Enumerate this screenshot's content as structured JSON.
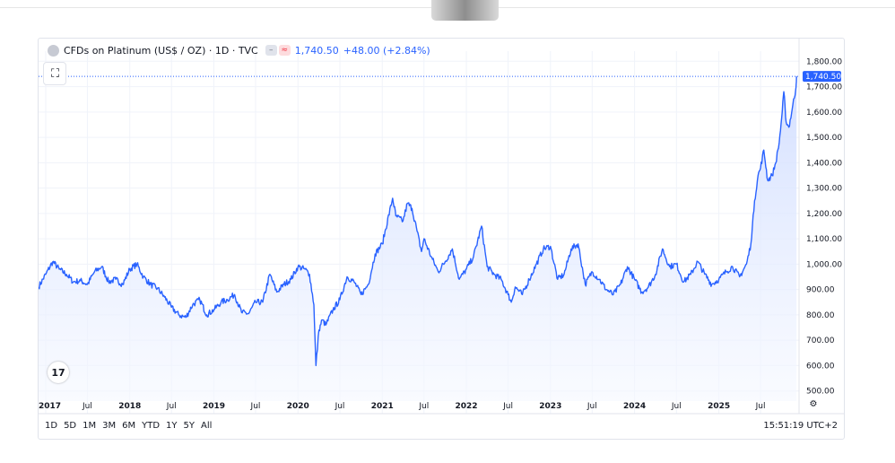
{
  "legend": {
    "title": "CFDs on Platinum (US$ / OZ) · 1D · TVC",
    "symbol_icon": "platinum-symbol-icon",
    "price": "1,740.50",
    "change": "+48.00 (+2.84%)",
    "price_color": "#2962ff"
  },
  "fullscreen_icon": "expand-icon",
  "range_buttons": [
    "1D",
    "5D",
    "1M",
    "3M",
    "6M",
    "YTD",
    "1Y",
    "5Y",
    "All"
  ],
  "clock": "15:51:19 UTC+2",
  "tv_logo": "17",
  "last_price_label": "1,740.50",
  "colors": {
    "line": "#2962ff",
    "area_top": "#cfdcff",
    "area_bottom": "#f5f8ff",
    "grid": "#f0f3fa"
  },
  "chart_data": {
    "type": "area",
    "title": "CFDs on Platinum (US$ / OZ) · 1D · TVC",
    "ylim": [
      460,
      1840
    ],
    "y_ticks": [
      "1,800.00",
      "1,700.00",
      "1,600.00",
      "1,500.00",
      "1,400.00",
      "1,300.00",
      "1,200.00",
      "1,100.00",
      "1,000.00",
      "900.00",
      "800.00",
      "700.00",
      "600.00",
      "500.00"
    ],
    "x_ticks": [
      "2017",
      "Jul",
      "2018",
      "Jul",
      "2019",
      "Jul",
      "2020",
      "Jul",
      "2021",
      "Jul",
      "2022",
      "Jul",
      "2023",
      "Jul",
      "2024",
      "Jul",
      "2025",
      "Jul"
    ],
    "xlim": [
      "2016-12-01",
      "2025-12-15"
    ],
    "grid": true,
    "series": [
      {
        "values": [
          [
            "2016-12-01",
            910
          ],
          [
            "2017-01-01",
            960
          ],
          [
            "2017-02-01",
            1010
          ],
          [
            "2017-03-01",
            980
          ],
          [
            "2017-04-01",
            960
          ],
          [
            "2017-05-01",
            930
          ],
          [
            "2017-06-01",
            935
          ],
          [
            "2017-07-01",
            920
          ],
          [
            "2017-08-01",
            970
          ],
          [
            "2017-09-01",
            990
          ],
          [
            "2017-10-01",
            930
          ],
          [
            "2017-11-01",
            940
          ],
          [
            "2017-12-01",
            920
          ],
          [
            "2018-01-01",
            980
          ],
          [
            "2018-02-01",
            1000
          ],
          [
            "2018-03-01",
            950
          ],
          [
            "2018-04-01",
            920
          ],
          [
            "2018-05-01",
            905
          ],
          [
            "2018-06-01",
            870
          ],
          [
            "2018-07-01",
            830
          ],
          [
            "2018-08-01",
            800
          ],
          [
            "2018-09-01",
            790
          ],
          [
            "2018-10-01",
            840
          ],
          [
            "2018-11-01",
            860
          ],
          [
            "2018-12-01",
            800
          ],
          [
            "2019-01-01",
            820
          ],
          [
            "2019-02-01",
            850
          ],
          [
            "2019-03-01",
            860
          ],
          [
            "2019-04-01",
            880
          ],
          [
            "2019-05-01",
            810
          ],
          [
            "2019-06-01",
            805
          ],
          [
            "2019-07-01",
            850
          ],
          [
            "2019-08-01",
            850
          ],
          [
            "2019-09-01",
            960
          ],
          [
            "2019-10-01",
            890
          ],
          [
            "2019-11-01",
            920
          ],
          [
            "2019-12-01",
            940
          ],
          [
            "2020-01-01",
            990
          ],
          [
            "2020-02-01",
            980
          ],
          [
            "2020-02-20",
            960
          ],
          [
            "2020-03-10",
            840
          ],
          [
            "2020-03-19",
            600
          ],
          [
            "2020-04-01",
            740
          ],
          [
            "2020-04-15",
            780
          ],
          [
            "2020-05-01",
            760
          ],
          [
            "2020-06-01",
            820
          ],
          [
            "2020-07-01",
            860
          ],
          [
            "2020-08-01",
            950
          ],
          [
            "2020-09-01",
            930
          ],
          [
            "2020-10-01",
            880
          ],
          [
            "2020-11-01",
            920
          ],
          [
            "2020-12-01",
            1040
          ],
          [
            "2021-01-01",
            1080
          ],
          [
            "2021-02-15",
            1260
          ],
          [
            "2021-03-01",
            1190
          ],
          [
            "2021-04-01",
            1170
          ],
          [
            "2021-04-20",
            1240
          ],
          [
            "2021-05-10",
            1220
          ],
          [
            "2021-06-01",
            1130
          ],
          [
            "2021-06-20",
            1050
          ],
          [
            "2021-07-01",
            1100
          ],
          [
            "2021-08-01",
            1030
          ],
          [
            "2021-09-01",
            970
          ],
          [
            "2021-10-01",
            1010
          ],
          [
            "2021-11-01",
            1060
          ],
          [
            "2021-12-01",
            940
          ],
          [
            "2022-01-01",
            980
          ],
          [
            "2022-02-01",
            1030
          ],
          [
            "2022-03-08",
            1150
          ],
          [
            "2022-04-01",
            990
          ],
          [
            "2022-05-01",
            960
          ],
          [
            "2022-06-01",
            940
          ],
          [
            "2022-07-01",
            880
          ],
          [
            "2022-07-15",
            850
          ],
          [
            "2022-08-01",
            910
          ],
          [
            "2022-09-01",
            880
          ],
          [
            "2022-10-01",
            940
          ],
          [
            "2022-11-01",
            1000
          ],
          [
            "2022-12-01",
            1060
          ],
          [
            "2023-01-01",
            1070
          ],
          [
            "2023-02-01",
            940
          ],
          [
            "2023-03-01",
            960
          ],
          [
            "2023-04-01",
            1060
          ],
          [
            "2023-05-01",
            1080
          ],
          [
            "2023-06-01",
            920
          ],
          [
            "2023-07-01",
            970
          ],
          [
            "2023-08-01",
            940
          ],
          [
            "2023-09-01",
            900
          ],
          [
            "2023-10-01",
            880
          ],
          [
            "2023-11-01",
            920
          ],
          [
            "2023-12-01",
            990
          ],
          [
            "2024-01-01",
            940
          ],
          [
            "2024-02-01",
            890
          ],
          [
            "2024-03-01",
            910
          ],
          [
            "2024-04-01",
            960
          ],
          [
            "2024-05-01",
            1060
          ],
          [
            "2024-06-01",
            990
          ],
          [
            "2024-07-01",
            1000
          ],
          [
            "2024-08-01",
            930
          ],
          [
            "2024-09-01",
            960
          ],
          [
            "2024-10-01",
            1010
          ],
          [
            "2024-11-01",
            960
          ],
          [
            "2024-12-01",
            920
          ],
          [
            "2025-01-01",
            940
          ],
          [
            "2025-02-01",
            970
          ],
          [
            "2025-03-01",
            990
          ],
          [
            "2025-04-01",
            950
          ],
          [
            "2025-05-01",
            1000
          ],
          [
            "2025-05-20",
            1080
          ],
          [
            "2025-06-05",
            1250
          ],
          [
            "2025-06-20",
            1350
          ],
          [
            "2025-07-01",
            1380
          ],
          [
            "2025-07-15",
            1450
          ],
          [
            "2025-08-01",
            1330
          ],
          [
            "2025-08-20",
            1350
          ],
          [
            "2025-09-05",
            1400
          ],
          [
            "2025-09-20",
            1480
          ],
          [
            "2025-10-01",
            1580
          ],
          [
            "2025-10-10",
            1680
          ],
          [
            "2025-10-20",
            1560
          ],
          [
            "2025-11-01",
            1540
          ],
          [
            "2025-11-15",
            1610
          ],
          [
            "2025-12-01",
            1692
          ],
          [
            "2025-12-04",
            1740.5
          ]
        ]
      }
    ]
  }
}
